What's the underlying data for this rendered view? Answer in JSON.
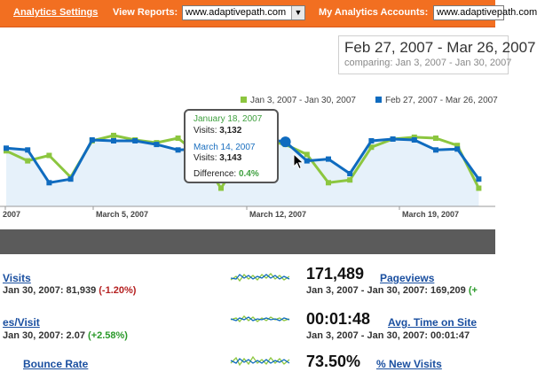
{
  "topbar": {
    "analytics_settings": "Analytics Settings",
    "view_reports_label": "View Reports:",
    "view_reports_value": "www.adaptivepath.com",
    "accounts_label": "My Analytics Accounts:",
    "accounts_value": "www.adaptivepath.com"
  },
  "daterange": {
    "main": "Feb 27, 2007 - Mar 26, 2007",
    "comparing": "comparing: Jan 3, 2007 - Jan 30, 2007"
  },
  "legend": {
    "series1": "Jan 3, 2007 - Jan 30, 2007",
    "series2": "Feb 27, 2007 - Mar 26, 2007"
  },
  "colors": {
    "orange": "#f26f21",
    "green": "#8cc63f",
    "blue": "#0f6bbf"
  },
  "chart_data": {
    "type": "line",
    "x_tick_labels": [
      "2007",
      "March 5, 2007",
      "March 12, 2007",
      "March 19, 2007"
    ],
    "series": [
      {
        "name": "Jan 3, 2007 - Jan 30, 2007",
        "values": [
          3010,
          2900,
          2960,
          2720,
          3120,
          3180,
          3130,
          3100,
          3150,
          2960,
          2600,
          2970,
          3130,
          3080,
          2970,
          2660,
          2690,
          3050,
          3140,
          3160,
          3150,
          3070,
          2600
        ]
      },
      {
        "name": "Feb 27, 2007 - Mar 26, 2007",
        "values": [
          3040,
          3020,
          2660,
          2700,
          3130,
          3120,
          3120,
          3080,
          3020,
          3030,
          3050,
          3090,
          3143,
          3110,
          2900,
          2920,
          2760,
          3120,
          3140,
          3130,
          3020,
          3030,
          2700
        ]
      }
    ]
  },
  "tooltip": {
    "date1": "January 18, 2007",
    "visits1_label": "Visits:",
    "visits1": "3,132",
    "date2": "March 14, 2007",
    "visits2_label": "Visits:",
    "visits2": "3,143",
    "difference_label": "Difference:",
    "difference": "0.4%"
  },
  "metrics": {
    "visits_label": "Visits",
    "visits_compare": "Jan 30, 2007: 81,939",
    "visits_change": "(-1.20%)",
    "pages_visit_label": "es/Visit",
    "pages_visit_compare": "Jan 30, 2007: 2.07",
    "pages_visit_change": "(+2.58%)",
    "pageviews_value": "171,489",
    "pageviews_label": "Pageviews",
    "pageviews_compare": "Jan 3, 2007 - Jan 30, 2007: 169,209",
    "pageviews_change": "(+",
    "avg_time_value": "00:01:48",
    "avg_time_label": "Avg. Time on Site",
    "avg_time_compare": "Jan 3, 2007 - Jan 30, 2007: 00:01:47",
    "new_visits_value": "73.50%",
    "new_visits_label": "% New Visits",
    "bounce_label": "Bounce Rate"
  }
}
